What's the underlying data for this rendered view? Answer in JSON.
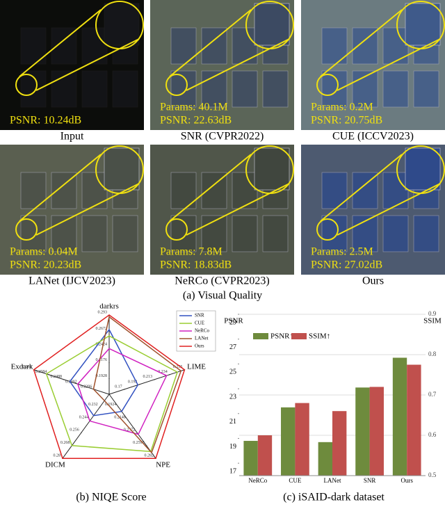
{
  "figure": {
    "panels": [
      {
        "caption": "Input",
        "lines": [
          "PSNR: 10.24dB"
        ]
      },
      {
        "caption": "SNR (CVPR2022)",
        "lines": [
          "Params: 40.1M",
          "PSNR: 22.63dB"
        ]
      },
      {
        "caption": "CUE (ICCV2023)",
        "lines": [
          "Params: 0.2M",
          "PSNR: 20.75dB"
        ]
      },
      {
        "caption": "LANet (IJCV2023)",
        "lines": [
          "Params: 0.04M",
          "PSNR: 20.23dB"
        ]
      },
      {
        "caption": "NeRCo (CVPR2023)",
        "lines": [
          "Params: 7.8M",
          "PSNR: 18.83dB"
        ]
      },
      {
        "caption": "Ours",
        "lines": [
          "Params: 2.5M",
          "PSNR:  27.02dB"
        ]
      }
    ],
    "caption": "(a) Visual Quality"
  },
  "chart_data": [
    {
      "type": "radar",
      "caption": "(b) NIQE Score",
      "axes": [
        {
          "name": "darkrs",
          "lim": [
            0.168,
            0.293
          ],
          "ticks": [
            0.1928,
            0.2176,
            0.2424,
            0.2672,
            0.293
          ]
        },
        {
          "name": "LIME",
          "lim": [
            0.15,
            0.255
          ],
          "ticks": [
            {
              "value": 0.171,
              "label": "0.17"
            },
            0.192,
            0.213,
            0.234,
            0.255
          ]
        },
        {
          "name": "NPE",
          "lim": [
            0.17,
            0.282
          ],
          "ticks": [
            0.1924,
            0.2148,
            0.2372,
            0.2596,
            0.282
          ]
        },
        {
          "name": "DICM",
          "lim": [
            0.22,
            0.28
          ],
          "ticks": [
            0.232,
            0.244,
            0.256,
            0.268,
            0.28
          ]
        },
        {
          "name": "Exdark",
          "lim": [
            0.22,
            0.268
          ],
          "ticks": [
            0.2296,
            0.2392,
            0.2488,
            0.2584,
            0.268
          ]
        }
      ],
      "series": [
        {
          "name": "SNR",
          "color": "#3050c0",
          "values": [
            0.27,
            0.19,
            0.2,
            0.24,
            0.245
          ]
        },
        {
          "name": "CUE",
          "color": "#9acd32",
          "values": [
            0.26,
            0.245,
            0.27,
            0.268,
            0.26
          ]
        },
        {
          "name": "NeRCo",
          "color": "#d020c0",
          "values": [
            0.24,
            0.23,
            0.24,
            0.245,
            0.24
          ]
        },
        {
          "name": "LANet",
          "color": "#a0522d",
          "values": [
            0.29,
            0.25,
            0.272,
            0.226,
            0.23
          ]
        },
        {
          "name": "Ours",
          "color": "#e02020",
          "values": [
            0.293,
            0.255,
            0.282,
            0.28,
            0.268
          ]
        }
      ]
    },
    {
      "type": "bar",
      "caption": "(c) iSAID-dark dataset",
      "ylabel": "PSNR",
      "y2label": "SSIM",
      "categories": [
        "NeRCo",
        "CUE",
        "LANet",
        "SNR",
        "Ours"
      ],
      "series": [
        {
          "name": "PSNR↑",
          "color": "#6e8b3d",
          "values": [
            18.8,
            21.5,
            18.7,
            23.1,
            25.5
          ]
        },
        {
          "name": "SSIM↑",
          "color": "#c0504d",
          "axis": "y2",
          "values": [
            0.6,
            0.68,
            0.66,
            0.72,
            0.775
          ]
        }
      ],
      "ylim": [
        16,
        29
      ],
      "yticks": [
        17,
        19,
        21,
        23,
        25,
        27,
        29
      ],
      "y2lim": [
        0.5,
        0.9
      ],
      "y2ticks": [
        0.5,
        0.6,
        0.7,
        0.8,
        0.9
      ]
    }
  ]
}
